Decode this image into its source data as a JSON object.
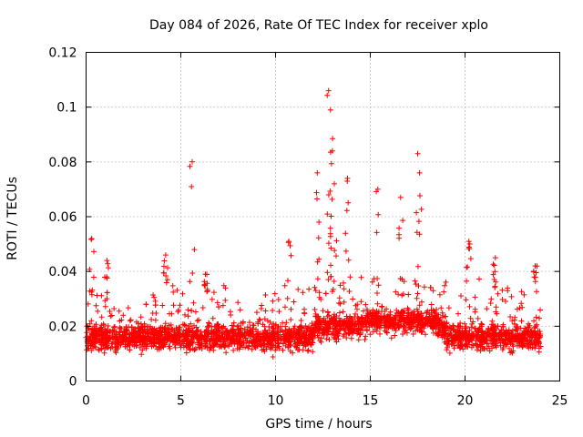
{
  "chart_data": {
    "type": "scatter",
    "title": "Day 084 of 2026, Rate Of TEC Index for receiver xplo",
    "xlabel": "GPS time / hours",
    "ylabel": "ROTI / TECUs",
    "xlim": [
      0,
      25
    ],
    "ylim": [
      0,
      0.12
    ],
    "xticks": [
      0,
      5,
      10,
      15,
      20,
      25
    ],
    "xtick_labels": [
      "0",
      "5",
      "10",
      "15",
      "20",
      "25"
    ],
    "yticks": [
      0,
      0.02,
      0.04,
      0.06,
      0.08,
      0.1,
      0.12
    ],
    "ytick_labels": [
      "0",
      "0.02",
      "0.04",
      "0.06",
      "0.08",
      "0.1",
      "0.12"
    ],
    "grid": true,
    "marker": "+",
    "marker_color": "#ff0000",
    "series": [
      {
        "name": "ROTI",
        "x_range": [
          0,
          24
        ],
        "bulk_y_range": [
          0.004,
          0.035
        ],
        "typical_center": 0.016,
        "peaks": [
          {
            "x": 0.3,
            "y": 0.052
          },
          {
            "x": 1.1,
            "y": 0.044
          },
          {
            "x": 4.2,
            "y": 0.046
          },
          {
            "x": 5.6,
            "y": 0.08
          },
          {
            "x": 6.3,
            "y": 0.039
          },
          {
            "x": 10.7,
            "y": 0.051
          },
          {
            "x": 12.2,
            "y": 0.076
          },
          {
            "x": 12.8,
            "y": 0.106
          },
          {
            "x": 12.9,
            "y": 0.099
          },
          {
            "x": 13.0,
            "y": 0.084
          },
          {
            "x": 13.1,
            "y": 0.072
          },
          {
            "x": 13.8,
            "y": 0.074
          },
          {
            "x": 15.4,
            "y": 0.07
          },
          {
            "x": 16.6,
            "y": 0.067
          },
          {
            "x": 17.5,
            "y": 0.083
          },
          {
            "x": 17.6,
            "y": 0.076
          },
          {
            "x": 20.2,
            "y": 0.051
          },
          {
            "x": 21.6,
            "y": 0.045
          },
          {
            "x": 23.7,
            "y": 0.042
          }
        ]
      }
    ]
  }
}
